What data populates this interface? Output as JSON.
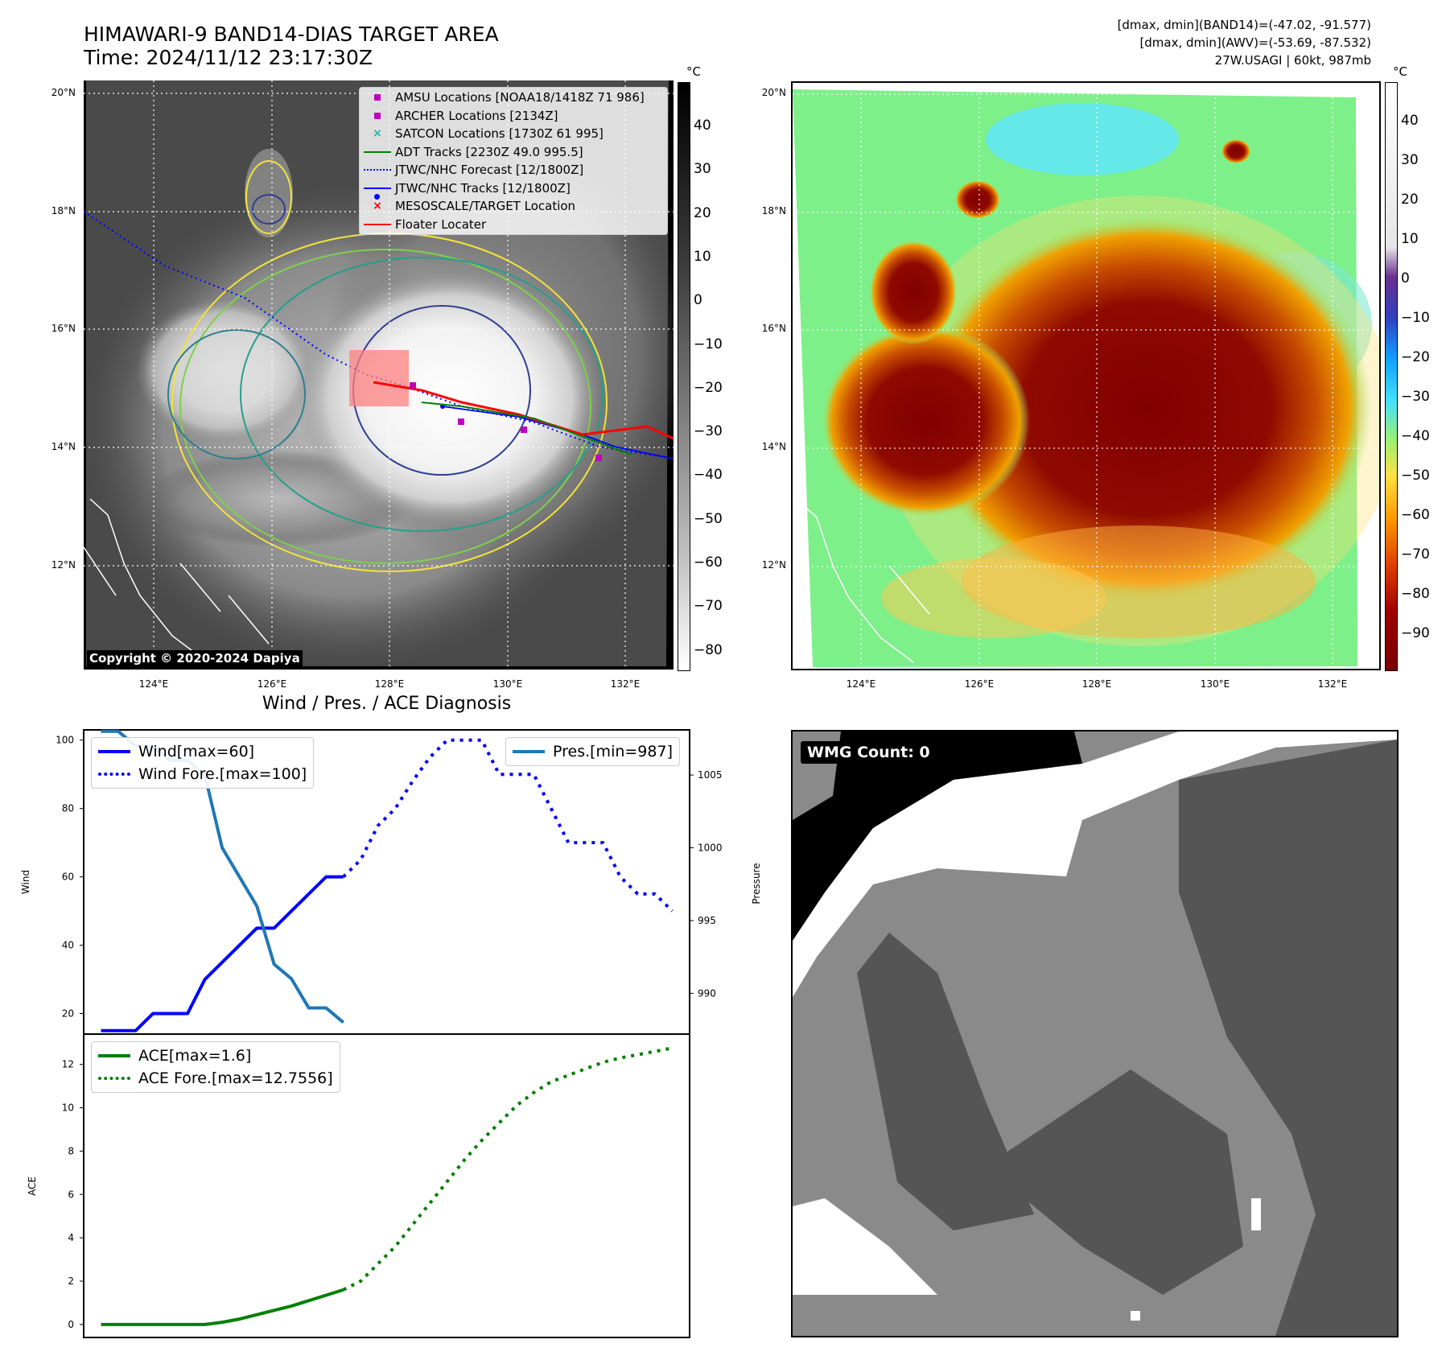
{
  "header": {
    "title_line1": "HIMAWARI-9 BAND14-DIAS TARGET AREA",
    "title_line2": "Time: 2024/11/12 23:17:30Z",
    "info_line1": "[dmax, dmin](BAND14)=(-47.02, -91.577)",
    "info_line2": "[dmax, dmin](AWV)=(-53.69, -87.532)",
    "info_line3": "27W.USAGI | 60kt, 987mb"
  },
  "map_axes": {
    "lat_labels": [
      "20°N",
      "18°N",
      "16°N",
      "14°N",
      "12°N"
    ],
    "lon_labels": [
      "124°E",
      "126°E",
      "128°E",
      "130°E",
      "132°E"
    ]
  },
  "ir_panel": {
    "copyright": "Copyright © 2020-2024 Dapiya",
    "colorbar_unit": "°C",
    "colorbar_ticks": [
      "40",
      "30",
      "20",
      "10",
      "0",
      "−10",
      "−20",
      "−30",
      "−40",
      "−50",
      "−60",
      "−70",
      "−80"
    ],
    "legend": [
      {
        "label": "AMSU Locations [NOAA18/1418Z 71 986]",
        "color": "#c000c0",
        "marker": "square"
      },
      {
        "label": "ARCHER Locations [2134Z]",
        "color": "#c000c0",
        "marker": "square"
      },
      {
        "label": "SATCON Locations [1730Z 61 995]",
        "color": "#20b0b0",
        "marker": "x"
      },
      {
        "label": "ADT Tracks [2230Z 49.0 995.5]",
        "color": "#008000",
        "marker": "line"
      },
      {
        "label": "JTWC/NHC Forecast [12/1800Z]",
        "color": "#0000ff",
        "marker": "dotted"
      },
      {
        "label": "JTWC/NHC Tracks [12/1800Z]",
        "color": "#0000ff",
        "marker": "line-dot"
      },
      {
        "label": "MESOSCALE/TARGET Location",
        "color": "#ff0000",
        "marker": "x"
      },
      {
        "label": "Floater Locater",
        "color": "#ff0000",
        "marker": "line"
      }
    ]
  },
  "awv_panel": {
    "colorbar_unit": "°C",
    "colorbar_ticks": [
      "40",
      "30",
      "20",
      "10",
      "0",
      "−10",
      "−20",
      "−30",
      "−40",
      "−50",
      "−60",
      "−70",
      "−80",
      "−90"
    ]
  },
  "wmg_panel": {
    "label": "WMG Count: 0"
  },
  "chart_data": [
    {
      "type": "line",
      "title": "Wind / Pres. / ACE Diagnosis",
      "ylabel": "Wind",
      "y2label": "Pressure",
      "ylim": [
        14,
        103
      ],
      "y2lim": [
        987.2,
        1008.1
      ],
      "xlim": [
        -1,
        34
      ],
      "yticks": [
        20,
        40,
        60,
        80,
        100
      ],
      "y2ticks": [
        990,
        995,
        1000,
        1005
      ],
      "series": [
        {
          "name": "Wind[max=60]",
          "color": "#0000ff",
          "style": "solid",
          "axis": "left",
          "x": [
            0,
            2,
            3,
            4,
            5,
            6,
            7,
            8,
            9,
            10,
            11,
            12,
            13,
            14
          ],
          "values": [
            15,
            15,
            20,
            20,
            20,
            30,
            35,
            40,
            45,
            45,
            50,
            55,
            60,
            60
          ]
        },
        {
          "name": "Wind Fore.[max=100]",
          "color": "#0000ff",
          "style": "dotted",
          "axis": "left",
          "x": [
            14,
            15,
            16,
            17,
            18,
            19,
            20,
            21,
            22,
            23,
            24,
            25,
            26,
            27,
            28,
            29,
            30,
            31,
            32,
            33
          ],
          "values": [
            60,
            65,
            75,
            80,
            88,
            95,
            100,
            100,
            100,
            90,
            90,
            90,
            80,
            70,
            70,
            70,
            60,
            55,
            55,
            50
          ]
        },
        {
          "name": "Pres.[min=987]",
          "color": "#1f77b4",
          "style": "solid",
          "axis": "right",
          "x": [
            0,
            1,
            2,
            3,
            4,
            5,
            6,
            7,
            8,
            9,
            10,
            11,
            12,
            13,
            14
          ],
          "values": [
            1008,
            1008,
            1007,
            1007,
            1006,
            1006,
            1005,
            1000,
            998,
            996,
            992,
            991,
            989,
            989,
            988
          ]
        }
      ]
    },
    {
      "type": "line",
      "ylabel": "ACE",
      "ylim": [
        -0.6,
        13.4
      ],
      "xlim": [
        -1,
        34
      ],
      "yticks": [
        0,
        2,
        4,
        6,
        8,
        10,
        12
      ],
      "series": [
        {
          "name": "ACE[max=1.6]",
          "color": "#008000",
          "style": "solid",
          "x": [
            0,
            1,
            2,
            3,
            4,
            5,
            6,
            7,
            8,
            9,
            10,
            11,
            12,
            13,
            14
          ],
          "values": [
            0,
            0,
            0,
            0,
            0,
            0,
            0,
            0.1,
            0.25,
            0.45,
            0.65,
            0.85,
            1.1,
            1.35,
            1.6
          ]
        },
        {
          "name": "ACE Fore.[max=12.7556]",
          "color": "#008000",
          "style": "dotted",
          "x": [
            14,
            15,
            16,
            17,
            18,
            19,
            20,
            21,
            22,
            23,
            24,
            25,
            26,
            27,
            28,
            29,
            30,
            31,
            32,
            33
          ],
          "values": [
            1.6,
            2.0,
            2.8,
            3.6,
            4.6,
            5.6,
            6.6,
            7.6,
            8.5,
            9.3,
            10.1,
            10.7,
            11.2,
            11.5,
            11.8,
            12.1,
            12.3,
            12.45,
            12.6,
            12.76
          ]
        }
      ]
    }
  ]
}
